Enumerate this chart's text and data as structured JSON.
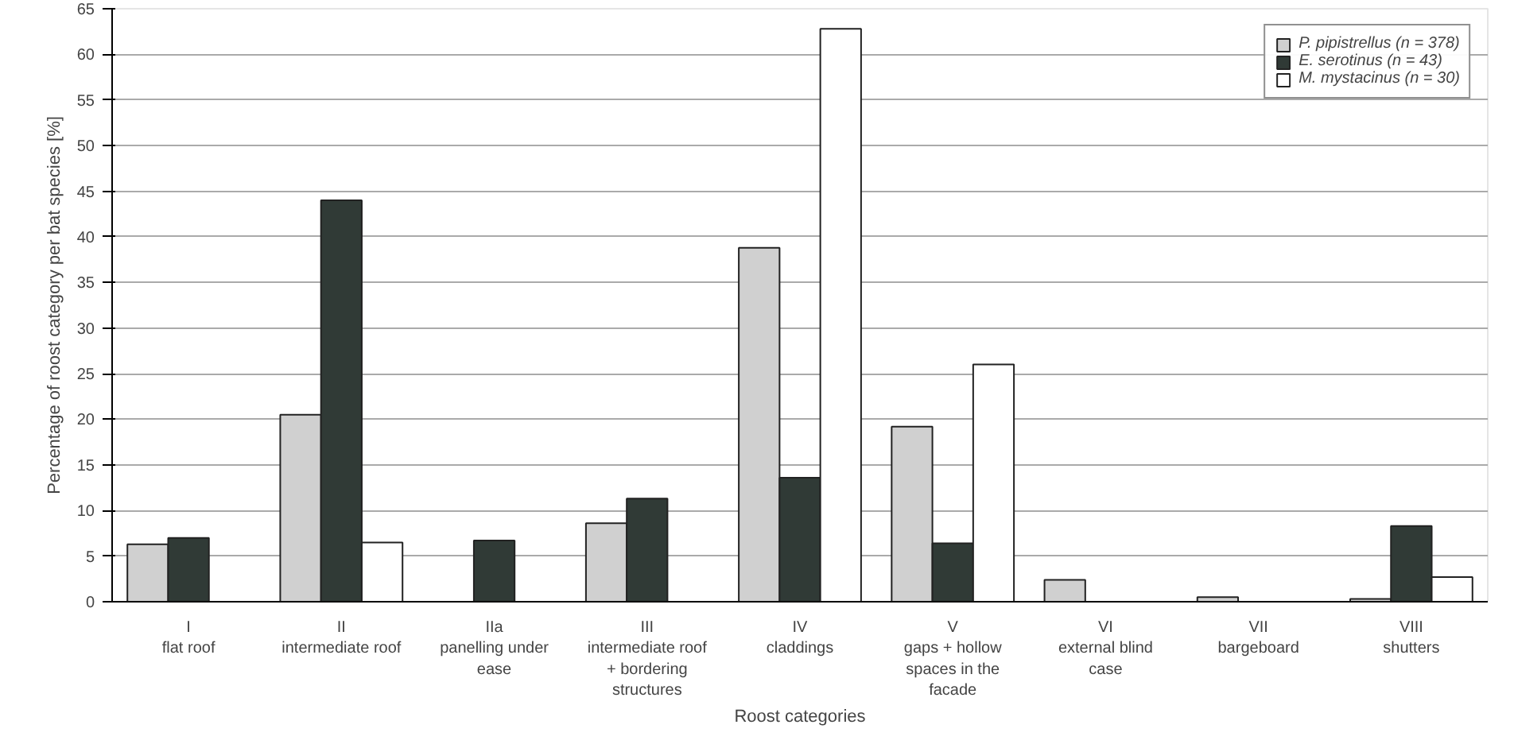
{
  "chart_data": {
    "type": "bar",
    "xlabel": "Roost categories",
    "ylabel": "Percentage of roost category per bat species [%]",
    "categories": [
      "I\nflat roof",
      "II\nintermediate roof",
      "IIa\npanelling under ease",
      "III\nintermediate roof + bordering structures",
      "IV\ncladdings",
      "V\ngaps + hollow spaces in the facade",
      "VI\nexternal blind case",
      "VII\nbargeboard",
      "VIII\nshutters"
    ],
    "series": [
      {
        "name": "P. pipistrellus (n = 378)",
        "color": "#d0d0d0",
        "values": [
          6.3,
          20.5,
          0,
          8.6,
          38.8,
          19.2,
          2.4,
          0.5,
          0.3
        ]
      },
      {
        "name": "E. serotinus (n = 43)",
        "color": "#303a36",
        "values": [
          7,
          44,
          6.7,
          11.3,
          13.6,
          6.4,
          0,
          0,
          8.3
        ]
      },
      {
        "name": "M. mystacinus (n = 30)",
        "color": "#ffffff",
        "values": [
          0,
          6.5,
          0,
          0,
          62.8,
          26,
          0,
          0,
          2.7
        ]
      }
    ],
    "ylim": [
      0,
      65
    ],
    "yticks": [
      0,
      5,
      10,
      15,
      20,
      25,
      30,
      35,
      40,
      45,
      50,
      55,
      60,
      65
    ],
    "grid": "y",
    "legend": "top right"
  }
}
